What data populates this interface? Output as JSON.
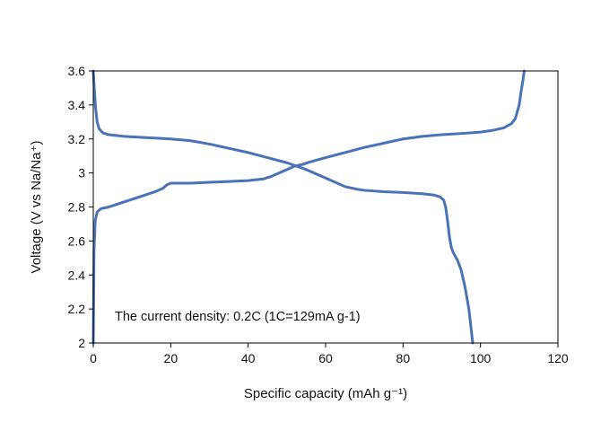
{
  "chart_data": {
    "type": "line",
    "xlabel": "Specific capacity   (mAh g⁻¹)",
    "ylabel": "Voltage  (V vs Na/Na⁺)",
    "annotation": "The current density: 0.2C (1C=129mA g-1)",
    "xlim": [
      0,
      120
    ],
    "ylim": [
      2,
      3.6
    ],
    "x_ticks": [
      0,
      20,
      40,
      60,
      80,
      100,
      120
    ],
    "y_ticks": [
      2,
      2.2,
      2.4,
      2.6,
      2.8,
      3,
      3.2,
      3.4,
      3.6
    ],
    "y_tick_labels": [
      "2",
      "2.2",
      "2.4",
      "2.6",
      "2.8",
      "3",
      "3.2",
      "3.4",
      "3.6"
    ],
    "grid": false,
    "line_color": "#4a72b8",
    "series": [
      {
        "x": [
          0,
          0.2,
          0.5,
          1,
          2,
          4,
          8,
          12,
          16,
          18,
          19,
          20,
          25,
          30,
          35,
          40,
          44,
          46,
          48,
          50,
          52,
          54,
          56,
          60,
          65,
          70,
          75,
          80,
          85,
          90,
          95,
          100,
          103,
          106,
          108,
          109,
          110,
          110.5,
          111,
          111.3
        ],
        "y": [
          2.0,
          2.55,
          2.72,
          2.77,
          2.79,
          2.8,
          2.83,
          2.86,
          2.89,
          2.91,
          2.93,
          2.94,
          2.94,
          2.945,
          2.95,
          2.955,
          2.965,
          2.98,
          3.0,
          3.02,
          3.04,
          3.05,
          3.065,
          3.09,
          3.12,
          3.15,
          3.175,
          3.2,
          3.215,
          3.225,
          3.232,
          3.24,
          3.25,
          3.265,
          3.29,
          3.32,
          3.4,
          3.48,
          3.55,
          3.6
        ]
      },
      {
        "x": [
          0,
          0.3,
          0.6,
          1,
          1.5,
          2.5,
          4,
          8,
          12,
          16,
          20,
          25,
          30,
          35,
          40,
          45,
          50,
          55,
          60,
          65,
          68,
          70,
          75,
          80,
          85,
          88,
          89.5,
          90.5,
          91,
          91.5,
          92,
          92.5,
          93,
          94,
          95,
          96,
          97,
          97.5,
          98
        ],
        "y": [
          3.6,
          3.48,
          3.38,
          3.3,
          3.26,
          3.235,
          3.225,
          3.215,
          3.21,
          3.205,
          3.2,
          3.19,
          3.17,
          3.145,
          3.12,
          3.09,
          3.06,
          3.02,
          2.97,
          2.92,
          2.905,
          2.898,
          2.89,
          2.885,
          2.878,
          2.87,
          2.86,
          2.84,
          2.8,
          2.72,
          2.62,
          2.56,
          2.53,
          2.49,
          2.43,
          2.33,
          2.2,
          2.1,
          2.0
        ]
      }
    ]
  }
}
